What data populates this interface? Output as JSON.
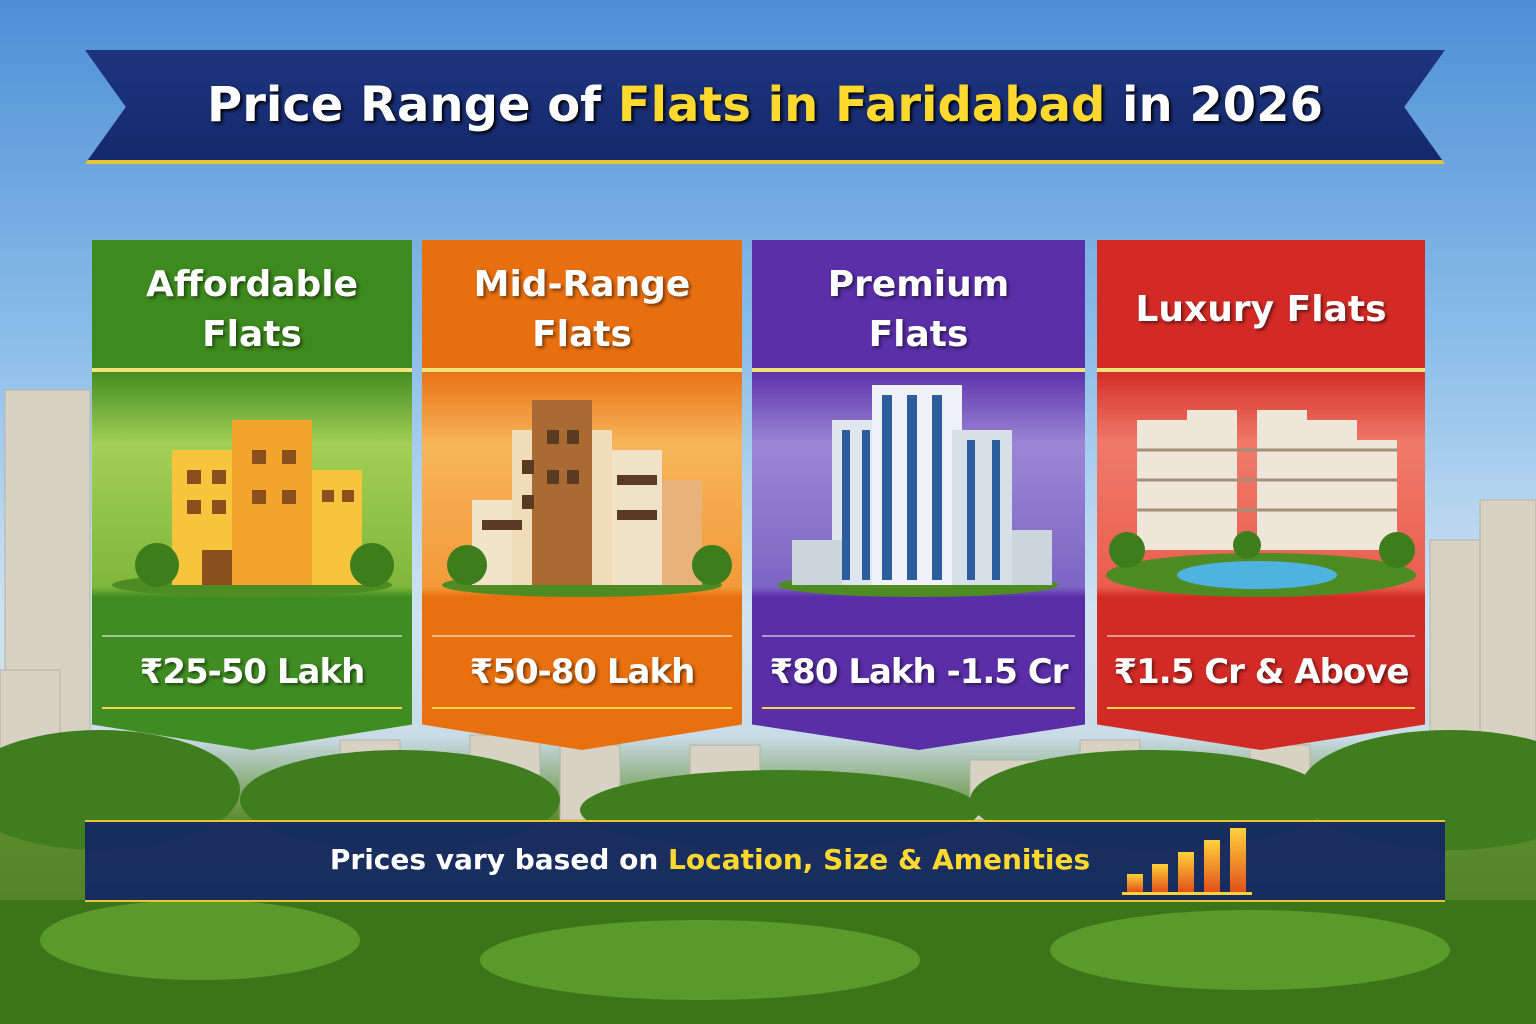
{
  "header": {
    "title_parts": [
      "Price Range of ",
      "Flats in Faridabad",
      " in 2026"
    ]
  },
  "cards": [
    {
      "title": "Affordable Flats",
      "price": "₹25-50 Lakh"
    },
    {
      "title": "Mid-Range Flats",
      "price": "₹50-80 Lakh"
    },
    {
      "title": "Premium Flats",
      "price": "₹80 Lakh -1.5 Cr"
    },
    {
      "title": "Luxury Flats",
      "price": "₹1.5 Cr & Above"
    }
  ],
  "footer": {
    "text_parts": [
      "Prices vary based on ",
      "Location, Size & Amenities"
    ]
  }
}
